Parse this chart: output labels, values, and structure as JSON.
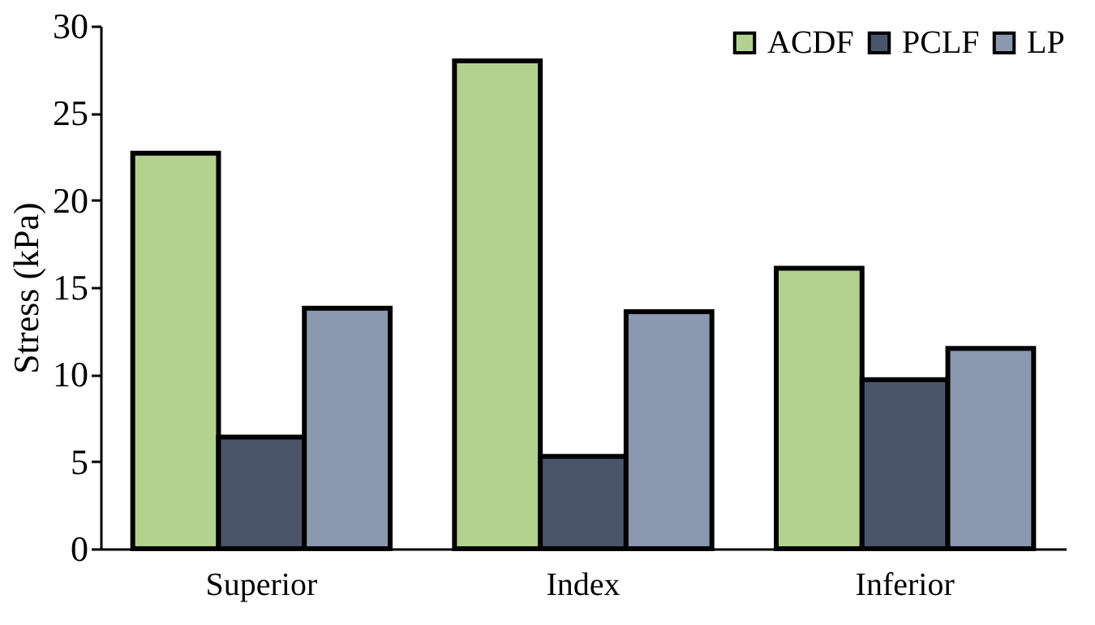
{
  "chart_data": {
    "type": "bar",
    "ylabel": "Stress (kPa)",
    "categories": [
      "Superior",
      "Index",
      "Inferior"
    ],
    "series": [
      {
        "name": "ACDF",
        "color": "#b3d18f",
        "values": [
          22.7,
          28.0,
          16.1
        ]
      },
      {
        "name": "PCLF",
        "color": "#4a556b",
        "values": [
          6.4,
          5.3,
          9.7
        ]
      },
      {
        "name": "LP",
        "color": "#8c98b0",
        "values": [
          13.8,
          13.6,
          11.5
        ]
      }
    ],
    "ylim": [
      0,
      30
    ],
    "yticks": [
      0,
      5,
      10,
      15,
      20,
      25,
      30
    ],
    "grid": false,
    "legend": "top right"
  }
}
